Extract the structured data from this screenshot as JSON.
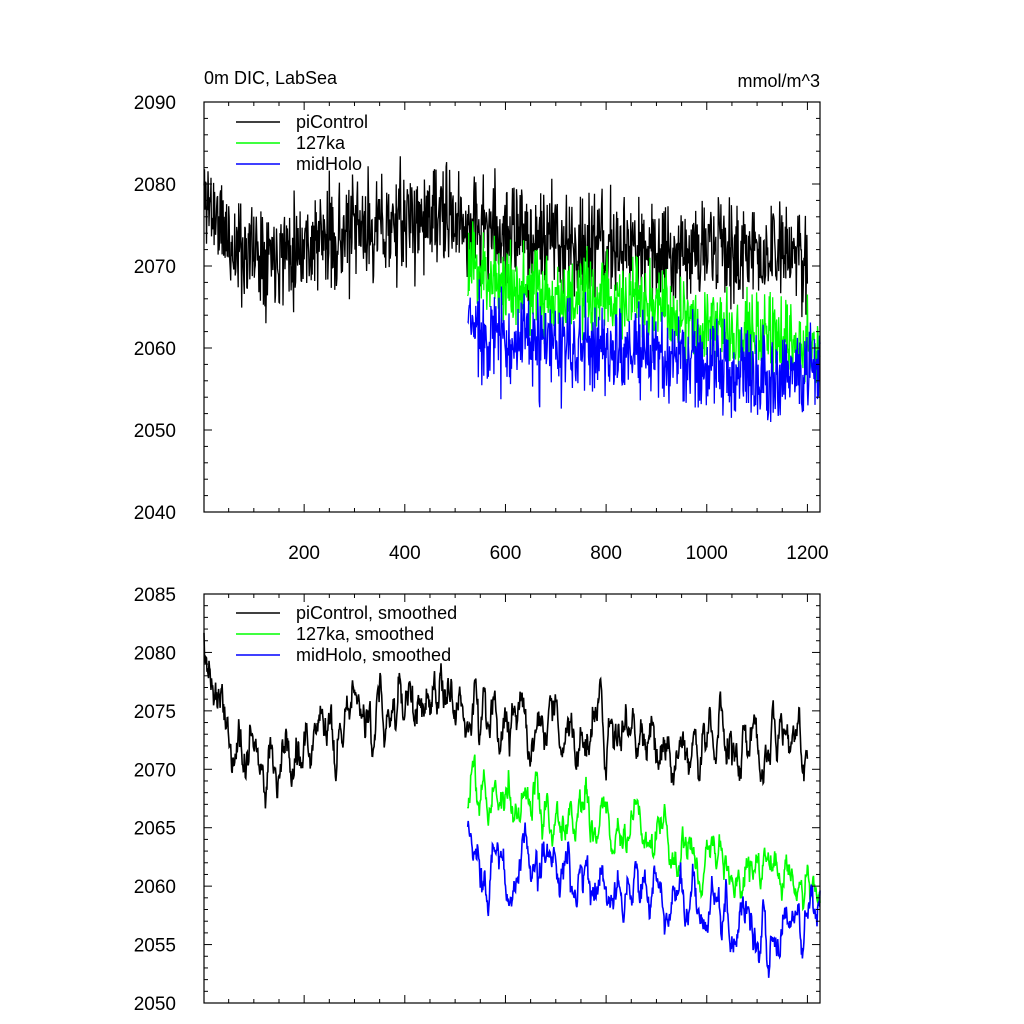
{
  "chart_data": [
    {
      "type": "line",
      "title": "0m DIC, LabSea",
      "units": "mmol/m^3",
      "xlabel": "",
      "ylabel": "",
      "xlim": [
        1,
        1225
      ],
      "ylim": [
        2040,
        2090
      ],
      "xticks": [
        200,
        400,
        600,
        800,
        1000,
        1200
      ],
      "yticks": [
        2040,
        2050,
        2060,
        2070,
        2080,
        2090
      ],
      "legend_position": "top-left",
      "series": [
        {
          "name": "piControl",
          "color": "#000000",
          "x_start": 1,
          "x_end": 1200,
          "gen": {
            "seed": 11,
            "base": [
              [
                0,
                2079
              ],
              [
                60,
                2072
              ],
              [
                150,
                2072
              ],
              [
                300,
                2074
              ],
              [
                450,
                2076
              ],
              [
                600,
                2074
              ],
              [
                800,
                2072
              ],
              [
                1000,
                2072
              ],
              [
                1200,
                2071
              ]
            ],
            "noise": 5.5,
            "smooth": 0
          }
        },
        {
          "name": "127ka",
          "color": "#00ff00",
          "x_start": 525,
          "x_end": 1225,
          "gen": {
            "seed": 23,
            "base": [
              [
                525,
                2070
              ],
              [
                600,
                2068
              ],
              [
                700,
                2066
              ],
              [
                800,
                2066
              ],
              [
                900,
                2065
              ],
              [
                1000,
                2063
              ],
              [
                1100,
                2062
              ],
              [
                1225,
                2060
              ]
            ],
            "noise": 4.5,
            "smooth": 0
          }
        },
        {
          "name": "midHolo",
          "color": "#0000ff",
          "x_start": 525,
          "x_end": 1225,
          "gen": {
            "seed": 37,
            "base": [
              [
                525,
                2063
              ],
              [
                600,
                2061
              ],
              [
                700,
                2060
              ],
              [
                800,
                2060
              ],
              [
                900,
                2059
              ],
              [
                1000,
                2058
              ],
              [
                1100,
                2057
              ],
              [
                1225,
                2057
              ]
            ],
            "noise": 5.0,
            "smooth": 0
          }
        }
      ]
    },
    {
      "type": "line",
      "title": "",
      "xlabel": "",
      "ylabel": "",
      "xlim": [
        1,
        1225
      ],
      "ylim": [
        2050,
        2085
      ],
      "xticks": [
        200,
        400,
        600,
        800,
        1000,
        1200
      ],
      "yticks": [
        2050,
        2055,
        2060,
        2065,
        2070,
        2075,
        2080,
        2085
      ],
      "legend_position": "top-left",
      "series": [
        {
          "name": "piControl, smoothed",
          "color": "#000000",
          "x_start": 1,
          "x_end": 1200,
          "gen": {
            "seed": 11,
            "base": [
              [
                0,
                2080
              ],
              [
                60,
                2072
              ],
              [
                150,
                2072
              ],
              [
                300,
                2074
              ],
              [
                450,
                2076
              ],
              [
                600,
                2074
              ],
              [
                800,
                2073
              ],
              [
                1000,
                2072
              ],
              [
                1200,
                2072
              ]
            ],
            "noise": 5.5,
            "smooth": 4,
            "amp": 1.6
          }
        },
        {
          "name": "127ka, smoothed",
          "color": "#00ff00",
          "x_start": 525,
          "x_end": 1225,
          "gen": {
            "seed": 23,
            "base": [
              [
                525,
                2068
              ],
              [
                600,
                2068
              ],
              [
                700,
                2066
              ],
              [
                800,
                2065
              ],
              [
                900,
                2064
              ],
              [
                1000,
                2063
              ],
              [
                1100,
                2062
              ],
              [
                1225,
                2060
              ]
            ],
            "noise": 4.5,
            "smooth": 4,
            "amp": 1.6
          }
        },
        {
          "name": "midHolo, smoothed",
          "color": "#0000ff",
          "x_start": 525,
          "x_end": 1225,
          "gen": {
            "seed": 37,
            "base": [
              [
                525,
                2063
              ],
              [
                600,
                2061
              ],
              [
                700,
                2061
              ],
              [
                800,
                2060
              ],
              [
                900,
                2059
              ],
              [
                1000,
                2058
              ],
              [
                1100,
                2057
              ],
              [
                1225,
                2057
              ]
            ],
            "noise": 5.0,
            "smooth": 4,
            "amp": 1.6
          }
        }
      ]
    }
  ]
}
